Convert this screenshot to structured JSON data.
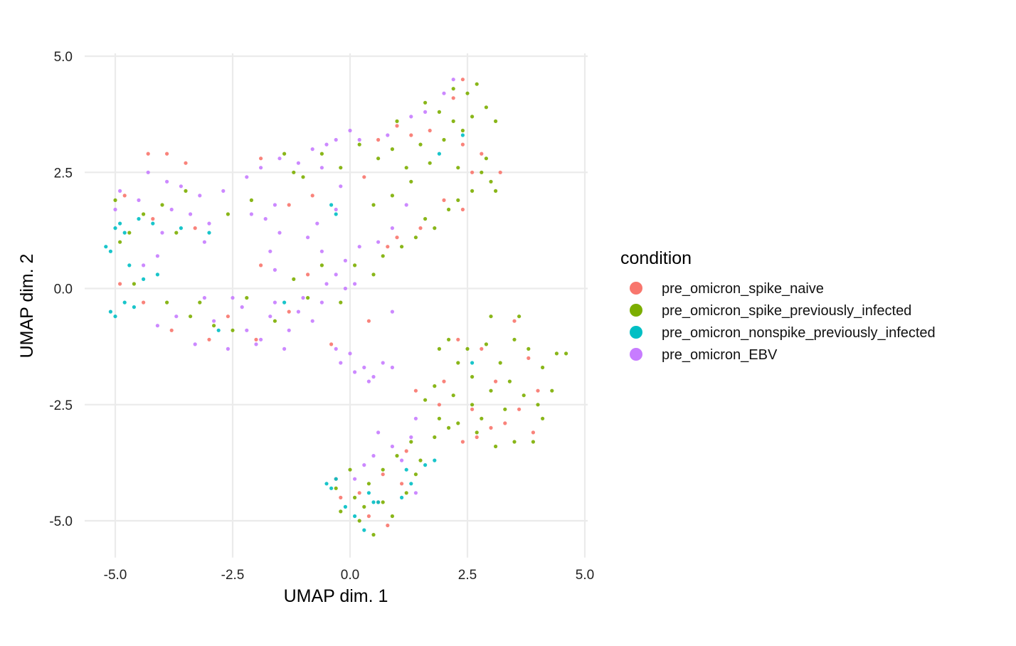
{
  "chart_data": {
    "type": "scatter",
    "title": "",
    "xlabel": "UMAP dim. 1",
    "ylabel": "UMAP dim. 2",
    "xlim": [
      -5.5,
      5.0
    ],
    "ylim": [
      -5.7,
      5.0
    ],
    "x_ticks": [
      -5.0,
      -2.5,
      0.0,
      2.5,
      5.0
    ],
    "x_tick_labels": [
      "-5.0",
      "-2.5",
      "0.0",
      "2.5",
      "5.0"
    ],
    "y_ticks": [
      5.0,
      2.5,
      0.0,
      -2.5,
      -5.0
    ],
    "y_tick_labels": [
      "5.0",
      "2.5",
      "0.0",
      "-2.5",
      "-5.0"
    ],
    "grid": true,
    "legend_title": "condition",
    "legend_position": "right",
    "series": [
      {
        "name": "pre_omicron_spike_naive",
        "color": "#F8766D",
        "points": [
          [
            -4.8,
            2.0
          ],
          [
            -4.3,
            2.9
          ],
          [
            -3.9,
            2.9
          ],
          [
            -3.5,
            2.7
          ],
          [
            -4.2,
            1.5
          ],
          [
            -3.3,
            1.3
          ],
          [
            -4.9,
            0.1
          ],
          [
            -4.4,
            -0.3
          ],
          [
            -3.8,
            -0.9
          ],
          [
            -3.0,
            -1.1
          ],
          [
            -2.6,
            -0.6
          ],
          [
            -1.9,
            0.5
          ],
          [
            -1.3,
            -0.5
          ],
          [
            -0.9,
            0.3
          ],
          [
            -0.8,
            2.0
          ],
          [
            -1.3,
            1.8
          ],
          [
            -1.9,
            2.8
          ],
          [
            0.3,
            2.4
          ],
          [
            0.6,
            3.2
          ],
          [
            1.0,
            3.5
          ],
          [
            1.3,
            3.3
          ],
          [
            1.7,
            3.4
          ],
          [
            2.4,
            3.1
          ],
          [
            2.8,
            2.9
          ],
          [
            3.2,
            2.5
          ],
          [
            2.6,
            2.5
          ],
          [
            2.4,
            4.5
          ],
          [
            2.2,
            4.1
          ],
          [
            2.0,
            1.9
          ],
          [
            2.4,
            1.7
          ],
          [
            1.5,
            1.3
          ],
          [
            1.0,
            1.1
          ],
          [
            0.8,
            0.9
          ],
          [
            1.4,
            -2.2
          ],
          [
            2.0,
            -2.0
          ],
          [
            2.6,
            -2.6
          ],
          [
            3.0,
            -3.0
          ],
          [
            3.6,
            -2.6
          ],
          [
            3.8,
            -1.5
          ],
          [
            3.9,
            -3.1
          ],
          [
            2.4,
            -3.3
          ],
          [
            4.0,
            -2.2
          ],
          [
            3.1,
            -2.0
          ],
          [
            3.5,
            -0.7
          ],
          [
            2.3,
            -1.1
          ],
          [
            2.8,
            -1.3
          ],
          [
            0.4,
            -4.9
          ],
          [
            -0.2,
            -4.5
          ],
          [
            0.8,
            -5.1
          ],
          [
            0.7,
            -4.0
          ],
          [
            1.1,
            -4.2
          ],
          [
            0.2,
            -4.4
          ],
          [
            -0.3,
            -4.1
          ],
          [
            0.6,
            -4.6
          ],
          [
            1.2,
            -3.5
          ],
          [
            1.9,
            -2.5
          ],
          [
            3.3,
            -2.9
          ],
          [
            2.7,
            -3.2
          ],
          [
            -2.0,
            -1.1
          ],
          [
            -0.4,
            -1.2
          ],
          [
            0.4,
            -0.7
          ]
        ]
      },
      {
        "name": "pre_omicron_spike_previously_infected",
        "color": "#7CAE00",
        "points": [
          [
            -5.0,
            1.9
          ],
          [
            -4.7,
            1.2
          ],
          [
            -4.4,
            1.6
          ],
          [
            -4.0,
            1.8
          ],
          [
            -3.7,
            1.2
          ],
          [
            -3.5,
            2.1
          ],
          [
            -4.9,
            1.0
          ],
          [
            -3.4,
            -0.6
          ],
          [
            -3.9,
            -0.3
          ],
          [
            -2.9,
            -0.8
          ],
          [
            -2.5,
            -0.9
          ],
          [
            -2.2,
            -0.2
          ],
          [
            -1.6,
            -0.7
          ],
          [
            -1.2,
            0.2
          ],
          [
            -0.6,
            0.5
          ],
          [
            -0.2,
            -0.3
          ],
          [
            0.1,
            0.5
          ],
          [
            0.5,
            0.3
          ],
          [
            0.7,
            0.7
          ],
          [
            1.1,
            0.9
          ],
          [
            1.4,
            1.1
          ],
          [
            1.6,
            1.5
          ],
          [
            1.8,
            1.3
          ],
          [
            2.1,
            1.7
          ],
          [
            2.3,
            1.9
          ],
          [
            2.6,
            2.1
          ],
          [
            2.8,
            2.5
          ],
          [
            3.0,
            2.3
          ],
          [
            1.5,
            3.1
          ],
          [
            1.2,
            2.6
          ],
          [
            0.9,
            3.0
          ],
          [
            0.6,
            2.8
          ],
          [
            0.2,
            3.1
          ],
          [
            -0.2,
            2.6
          ],
          [
            -0.6,
            2.9
          ],
          [
            -1.0,
            2.4
          ],
          [
            -1.4,
            2.9
          ],
          [
            -1.2,
            2.5
          ],
          [
            1.9,
            3.8
          ],
          [
            2.2,
            3.6
          ],
          [
            2.5,
            4.2
          ],
          [
            2.7,
            4.4
          ],
          [
            2.9,
            3.9
          ],
          [
            3.1,
            3.6
          ],
          [
            2.4,
            3.4
          ],
          [
            2.0,
            3.2
          ],
          [
            1.7,
            2.7
          ],
          [
            2.3,
            2.6
          ],
          [
            2.9,
            2.8
          ],
          [
            3.1,
            2.1
          ],
          [
            1.3,
            2.3
          ],
          [
            0.9,
            2.0
          ],
          [
            0.5,
            1.8
          ],
          [
            1.6,
            4.0
          ],
          [
            2.2,
            4.3
          ],
          [
            2.6,
            3.7
          ],
          [
            1.9,
            -1.3
          ],
          [
            2.3,
            -1.6
          ],
          [
            2.6,
            -1.9
          ],
          [
            2.9,
            -1.2
          ],
          [
            3.2,
            -1.6
          ],
          [
            3.5,
            -1.1
          ],
          [
            3.8,
            -1.3
          ],
          [
            4.1,
            -1.7
          ],
          [
            4.3,
            -2.2
          ],
          [
            4.4,
            -1.4
          ],
          [
            4.1,
            -2.8
          ],
          [
            3.9,
            -3.3
          ],
          [
            3.5,
            -3.3
          ],
          [
            3.1,
            -3.4
          ],
          [
            2.7,
            -3.1
          ],
          [
            2.3,
            -2.9
          ],
          [
            1.9,
            -2.8
          ],
          [
            1.6,
            -2.4
          ],
          [
            1.8,
            -2.1
          ],
          [
            2.2,
            -2.3
          ],
          [
            2.6,
            -2.5
          ],
          [
            3.0,
            -2.2
          ],
          [
            3.4,
            -2.0
          ],
          [
            3.7,
            -2.3
          ],
          [
            4.0,
            -2.5
          ],
          [
            3.3,
            -2.6
          ],
          [
            2.8,
            -2.8
          ],
          [
            2.5,
            -1.3
          ],
          [
            2.1,
            -1.1
          ],
          [
            3.0,
            -0.6
          ],
          [
            3.6,
            -0.6
          ],
          [
            4.6,
            -1.4
          ],
          [
            1.3,
            -3.3
          ],
          [
            1.0,
            -3.6
          ],
          [
            0.7,
            -3.9
          ],
          [
            0.4,
            -4.2
          ],
          [
            0.1,
            -4.5
          ],
          [
            -0.2,
            -4.8
          ],
          [
            0.2,
            -5.0
          ],
          [
            0.5,
            -5.3
          ],
          [
            0.9,
            -4.9
          ],
          [
            1.2,
            -4.4
          ],
          [
            1.4,
            -4.0
          ],
          [
            0.7,
            -4.6
          ],
          [
            -0.3,
            -4.3
          ],
          [
            0.0,
            -3.9
          ],
          [
            0.3,
            -4.7
          ],
          [
            1.5,
            -3.7
          ],
          [
            1.8,
            -3.2
          ],
          [
            2.1,
            -3.0
          ],
          [
            -2.1,
            1.9
          ],
          [
            -2.6,
            1.6
          ],
          [
            -4.6,
            0.1
          ],
          [
            -3.2,
            -0.3
          ],
          [
            -0.9,
            -0.2
          ],
          [
            1.0,
            3.6
          ]
        ]
      },
      {
        "name": "pre_omicron_nonspike_previously_infected",
        "color": "#00BFC4",
        "points": [
          [
            -5.2,
            0.9
          ],
          [
            -5.1,
            0.8
          ],
          [
            -5.0,
            1.3
          ],
          [
            -4.9,
            1.4
          ],
          [
            -4.8,
            1.2
          ],
          [
            -5.1,
            -0.5
          ],
          [
            -5.0,
            -0.6
          ],
          [
            -4.8,
            -0.3
          ],
          [
            -4.6,
            -0.4
          ],
          [
            -4.5,
            1.5
          ],
          [
            -4.2,
            1.4
          ],
          [
            -3.6,
            1.3
          ],
          [
            -3.0,
            1.2
          ],
          [
            -4.1,
            0.3
          ],
          [
            -2.8,
            -0.9
          ],
          [
            -1.4,
            -0.3
          ],
          [
            -0.4,
            1.8
          ],
          [
            -0.3,
            1.6
          ],
          [
            1.9,
            2.9
          ],
          [
            2.4,
            3.3
          ],
          [
            -0.5,
            -4.2
          ],
          [
            -0.3,
            -4.1
          ],
          [
            -0.4,
            -4.3
          ],
          [
            -0.1,
            -4.7
          ],
          [
            0.1,
            -4.9
          ],
          [
            0.3,
            -5.2
          ],
          [
            0.6,
            -4.6
          ],
          [
            1.1,
            -4.5
          ],
          [
            1.3,
            -4.2
          ],
          [
            1.6,
            -3.8
          ],
          [
            1.8,
            -3.7
          ],
          [
            1.2,
            -3.9
          ],
          [
            0.4,
            -4.4
          ],
          [
            2.6,
            -1.6
          ],
          [
            0.5,
            -4.6
          ],
          [
            -4.7,
            0.5
          ],
          [
            -4.4,
            0.2
          ]
        ]
      },
      {
        "name": "pre_omicron_EBV",
        "color": "#C77CFF",
        "points": [
          [
            -4.9,
            2.1
          ],
          [
            -5.0,
            1.7
          ],
          [
            -4.3,
            2.5
          ],
          [
            -3.9,
            2.3
          ],
          [
            -3.6,
            2.2
          ],
          [
            -3.2,
            2.0
          ],
          [
            -3.8,
            1.7
          ],
          [
            -3.4,
            1.6
          ],
          [
            -3.1,
            1.0
          ],
          [
            -4.1,
            0.7
          ],
          [
            -4.4,
            0.5
          ],
          [
            -4.1,
            -0.8
          ],
          [
            -3.7,
            -0.6
          ],
          [
            -3.3,
            -1.2
          ],
          [
            -2.9,
            -0.7
          ],
          [
            -2.6,
            -1.3
          ],
          [
            -2.3,
            -0.4
          ],
          [
            -2.2,
            -0.9
          ],
          [
            -1.9,
            -1.1
          ],
          [
            -1.7,
            -0.6
          ],
          [
            -1.6,
            -0.3
          ],
          [
            -1.3,
            -0.9
          ],
          [
            -1.1,
            -0.5
          ],
          [
            -1.0,
            -0.2
          ],
          [
            -0.8,
            -0.7
          ],
          [
            -0.6,
            -0.3
          ],
          [
            -0.5,
            0.1
          ],
          [
            -0.3,
            0.3
          ],
          [
            -0.1,
            0.0
          ],
          [
            0.1,
            0.1
          ],
          [
            -1.6,
            0.4
          ],
          [
            -1.7,
            0.8
          ],
          [
            -1.5,
            1.2
          ],
          [
            -1.8,
            1.5
          ],
          [
            -1.6,
            1.8
          ],
          [
            -2.1,
            1.6
          ],
          [
            -2.2,
            2.4
          ],
          [
            -1.9,
            2.6
          ],
          [
            -1.5,
            2.8
          ],
          [
            -1.1,
            2.7
          ],
          [
            -0.8,
            3.0
          ],
          [
            -0.5,
            3.1
          ],
          [
            -0.3,
            3.2
          ],
          [
            0.0,
            3.4
          ],
          [
            0.2,
            3.2
          ],
          [
            -0.6,
            2.6
          ],
          [
            -0.2,
            2.2
          ],
          [
            -0.3,
            1.7
          ],
          [
            -0.7,
            1.4
          ],
          [
            -0.9,
            1.1
          ],
          [
            -0.6,
            0.8
          ],
          [
            -0.2,
            -1.6
          ],
          [
            0.1,
            -1.8
          ],
          [
            0.3,
            -1.7
          ],
          [
            0.5,
            -1.9
          ],
          [
            0.7,
            -1.6
          ],
          [
            0.9,
            -1.7
          ],
          [
            -0.3,
            -1.3
          ],
          [
            0.0,
            -1.4
          ],
          [
            0.4,
            -2.0
          ],
          [
            0.9,
            -0.5
          ],
          [
            -1.4,
            -1.3
          ],
          [
            -2.0,
            -1.2
          ],
          [
            -2.5,
            -0.2
          ],
          [
            -3.1,
            -0.2
          ],
          [
            1.4,
            -2.8
          ],
          [
            1.3,
            -3.2
          ],
          [
            0.6,
            -3.1
          ],
          [
            0.5,
            -3.6
          ],
          [
            0.9,
            -3.4
          ],
          [
            0.1,
            -4.1
          ],
          [
            0.3,
            -3.8
          ],
          [
            1.1,
            -3.7
          ],
          [
            1.4,
            -4.4
          ],
          [
            2.2,
            4.5
          ],
          [
            2.0,
            4.2
          ],
          [
            1.6,
            3.8
          ],
          [
            1.3,
            3.7
          ],
          [
            0.8,
            3.3
          ],
          [
            -0.1,
            0.6
          ],
          [
            0.2,
            0.9
          ],
          [
            0.6,
            1.0
          ],
          [
            0.9,
            1.3
          ],
          [
            1.2,
            1.8
          ],
          [
            -4.5,
            1.9
          ],
          [
            -4.0,
            1.2
          ],
          [
            -3.0,
            1.4
          ],
          [
            -2.7,
            2.1
          ]
        ]
      }
    ]
  }
}
